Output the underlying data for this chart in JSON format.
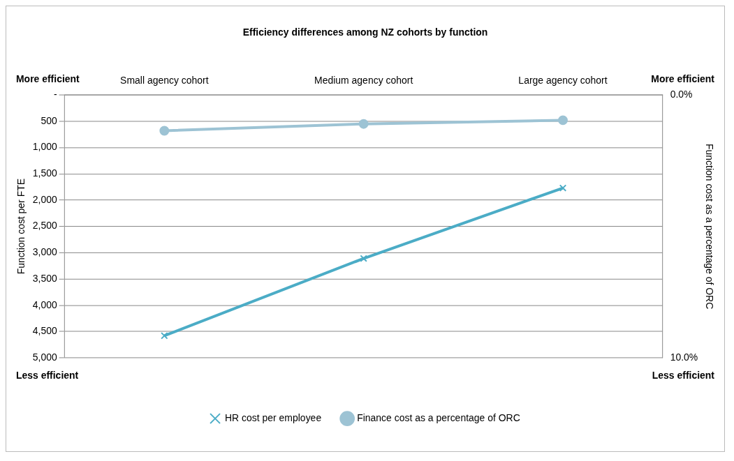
{
  "chart_data": {
    "type": "line",
    "title": "Efficiency differences among NZ cohorts by function",
    "categories": [
      "Small agency cohort",
      "Medium agency cohort",
      "Large agency cohort"
    ],
    "ylabel": "Function cost per FTE",
    "y2label": "Function cost as a percentage of ORC",
    "ylim": [
      5000,
      0
    ],
    "yticks": [
      {
        "value": 0,
        "label": "-"
      },
      500,
      {
        "value": 1000,
        "label": "1,000"
      },
      {
        "value": 1500,
        "label": "1,500"
      },
      {
        "value": 2000,
        "label": "2,000"
      },
      {
        "value": 2500,
        "label": "2,500"
      },
      {
        "value": 3000,
        "label": "3,000"
      },
      {
        "value": 3500,
        "label": "3,500"
      },
      {
        "value": 4000,
        "label": "4,000"
      },
      {
        "value": 4500,
        "label": "4,500"
      },
      {
        "value": 5000,
        "label": "5,000"
      }
    ],
    "y2lim": [
      10,
      0
    ],
    "y2ticks": [
      {
        "value": 0,
        "label": "0.0%"
      },
      {
        "value": 10,
        "label": "10.0%"
      }
    ],
    "series": [
      {
        "name": "HR cost per employee",
        "color": "#4bacc6",
        "values": [
          4580,
          3110,
          1770
        ],
        "marker": "cross"
      },
      {
        "name": "Finance cost as a percentage of ORC",
        "color": "#9dc3d4",
        "values": [
          1.36,
          1.1,
          0.96
        ],
        "axis": "y2",
        "marker": "circle"
      }
    ],
    "annotations": [
      "More efficient",
      "More efficient",
      "Less efficient",
      "Less efficient"
    ],
    "grid": "y",
    "legend": "bottom",
    "line_style": "solid"
  }
}
